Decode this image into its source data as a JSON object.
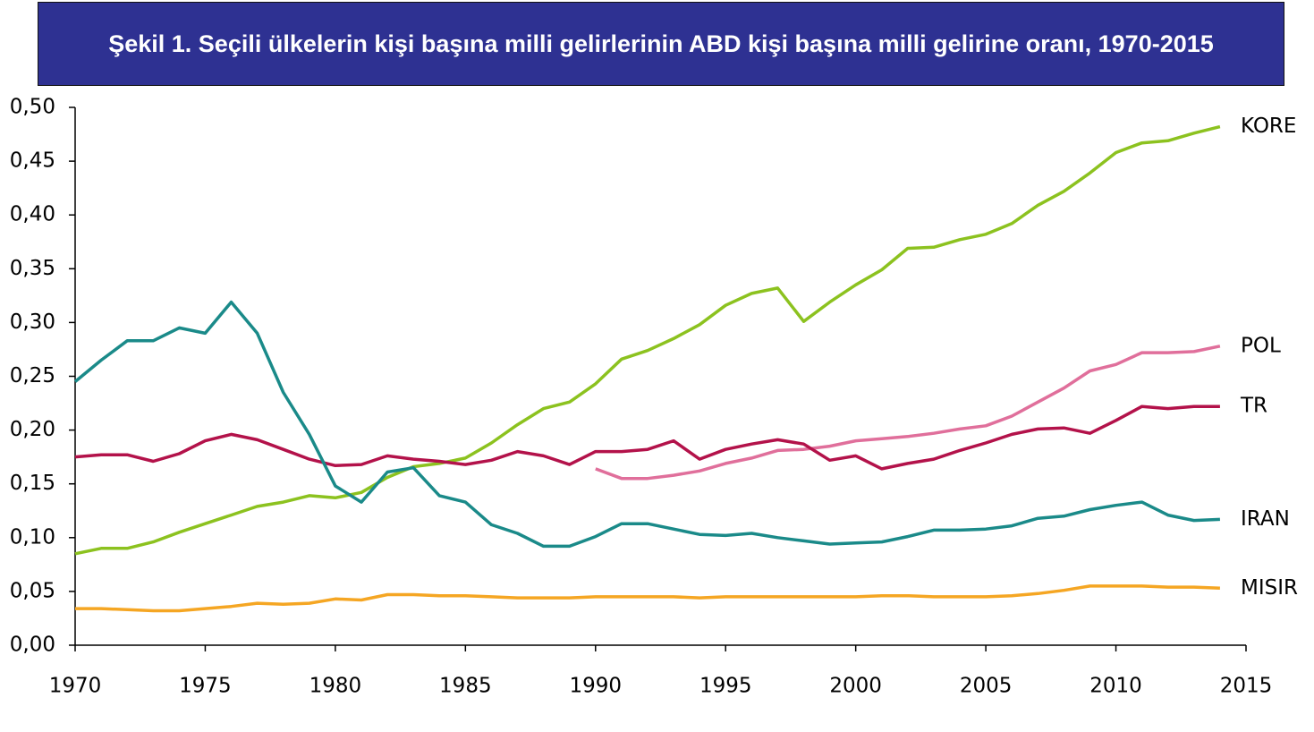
{
  "chart_data": {
    "type": "line",
    "title": "Şekil 1. Seçili ülkelerin kişi başına milli gelirlerinin ABD kişi başına milli gelirine oranı, 1970-2015",
    "x": [
      1970,
      1971,
      1972,
      1973,
      1974,
      1975,
      1976,
      1977,
      1978,
      1979,
      1980,
      1981,
      1982,
      1983,
      1984,
      1985,
      1986,
      1987,
      1988,
      1989,
      1990,
      1991,
      1992,
      1993,
      1994,
      1995,
      1996,
      1997,
      1998,
      1999,
      2000,
      2001,
      2002,
      2003,
      2004,
      2005,
      2006,
      2007,
      2008,
      2009,
      2010,
      2011,
      2012,
      2013,
      2014
    ],
    "series": [
      {
        "name": "KORE",
        "color": "#8cc21f",
        "values": [
          0.085,
          0.09,
          0.09,
          0.096,
          0.105,
          0.113,
          0.121,
          0.129,
          0.133,
          0.139,
          0.137,
          0.142,
          0.156,
          0.166,
          0.169,
          0.174,
          0.188,
          0.205,
          0.22,
          0.226,
          0.243,
          0.266,
          0.274,
          0.285,
          0.298,
          0.316,
          0.327,
          0.332,
          0.301,
          0.319,
          0.335,
          0.349,
          0.369,
          0.37,
          0.377,
          0.382,
          0.392,
          0.409,
          0.422,
          0.439,
          0.458,
          0.467,
          0.469,
          0.476,
          0.482
        ]
      },
      {
        "name": "POL",
        "color": "#e06f9b",
        "values": [
          null,
          null,
          null,
          null,
          null,
          null,
          null,
          null,
          null,
          null,
          null,
          null,
          null,
          null,
          null,
          null,
          null,
          null,
          null,
          null,
          0.164,
          0.155,
          0.155,
          0.158,
          0.162,
          0.169,
          0.174,
          0.181,
          0.182,
          0.185,
          0.19,
          0.192,
          0.194,
          0.197,
          0.201,
          0.204,
          0.213,
          0.226,
          0.239,
          0.255,
          0.261,
          0.272,
          0.272,
          0.273,
          0.278
        ]
      },
      {
        "name": "TR",
        "color": "#b3124a",
        "values": [
          0.175,
          0.177,
          0.177,
          0.171,
          0.178,
          0.19,
          0.196,
          0.191,
          0.182,
          0.173,
          0.167,
          0.168,
          0.176,
          0.173,
          0.171,
          0.168,
          0.172,
          0.18,
          0.176,
          0.168,
          0.18,
          0.18,
          0.182,
          0.19,
          0.173,
          0.182,
          0.187,
          0.191,
          0.187,
          0.172,
          0.176,
          0.164,
          0.169,
          0.173,
          0.181,
          0.188,
          0.196,
          0.201,
          0.202,
          0.197,
          0.209,
          0.222,
          0.22,
          0.222,
          0.222
        ]
      },
      {
        "name": "IRAN",
        "color": "#1a8a89",
        "values": [
          0.245,
          0.265,
          0.283,
          0.283,
          0.295,
          0.29,
          0.319,
          0.29,
          0.235,
          0.196,
          0.148,
          0.133,
          0.161,
          0.165,
          0.139,
          0.133,
          0.112,
          0.104,
          0.092,
          0.092,
          0.101,
          0.113,
          0.113,
          0.108,
          0.103,
          0.102,
          0.104,
          0.1,
          0.097,
          0.094,
          0.095,
          0.096,
          0.101,
          0.107,
          0.107,
          0.108,
          0.111,
          0.118,
          0.12,
          0.126,
          0.13,
          0.133,
          0.121,
          0.116,
          0.117
        ]
      },
      {
        "name": "MISIR",
        "color": "#f5a623",
        "values": [
          0.034,
          0.034,
          0.033,
          0.032,
          0.032,
          0.034,
          0.036,
          0.039,
          0.038,
          0.039,
          0.043,
          0.042,
          0.047,
          0.047,
          0.046,
          0.046,
          0.045,
          0.044,
          0.044,
          0.044,
          0.045,
          0.045,
          0.045,
          0.045,
          0.044,
          0.045,
          0.045,
          0.045,
          0.045,
          0.045,
          0.045,
          0.046,
          0.046,
          0.045,
          0.045,
          0.045,
          0.046,
          0.048,
          0.051,
          0.055,
          0.055,
          0.055,
          0.054,
          0.054,
          0.053
        ]
      }
    ],
    "xlim": [
      1970,
      2015
    ],
    "xticks": [
      1970,
      1975,
      1980,
      1985,
      1990,
      1995,
      2000,
      2005,
      2010,
      2015
    ],
    "ylim": [
      0,
      0.5
    ],
    "yticks": [
      {
        "value": 0,
        "label": "0,00"
      },
      {
        "value": 0.05,
        "label": "0,05"
      },
      {
        "value": 0.1,
        "label": "0,10"
      },
      {
        "value": 0.15,
        "label": "0,15"
      },
      {
        "value": 0.2,
        "label": "0,20"
      },
      {
        "value": 0.25,
        "label": "0,25"
      },
      {
        "value": 0.3,
        "label": "0,30"
      },
      {
        "value": 0.35,
        "label": "0,35"
      },
      {
        "value": 0.4,
        "label": "0,40"
      },
      {
        "value": 0.45,
        "label": "0,45"
      },
      {
        "value": 0.5,
        "label": "0,50"
      }
    ],
    "grid": false
  }
}
